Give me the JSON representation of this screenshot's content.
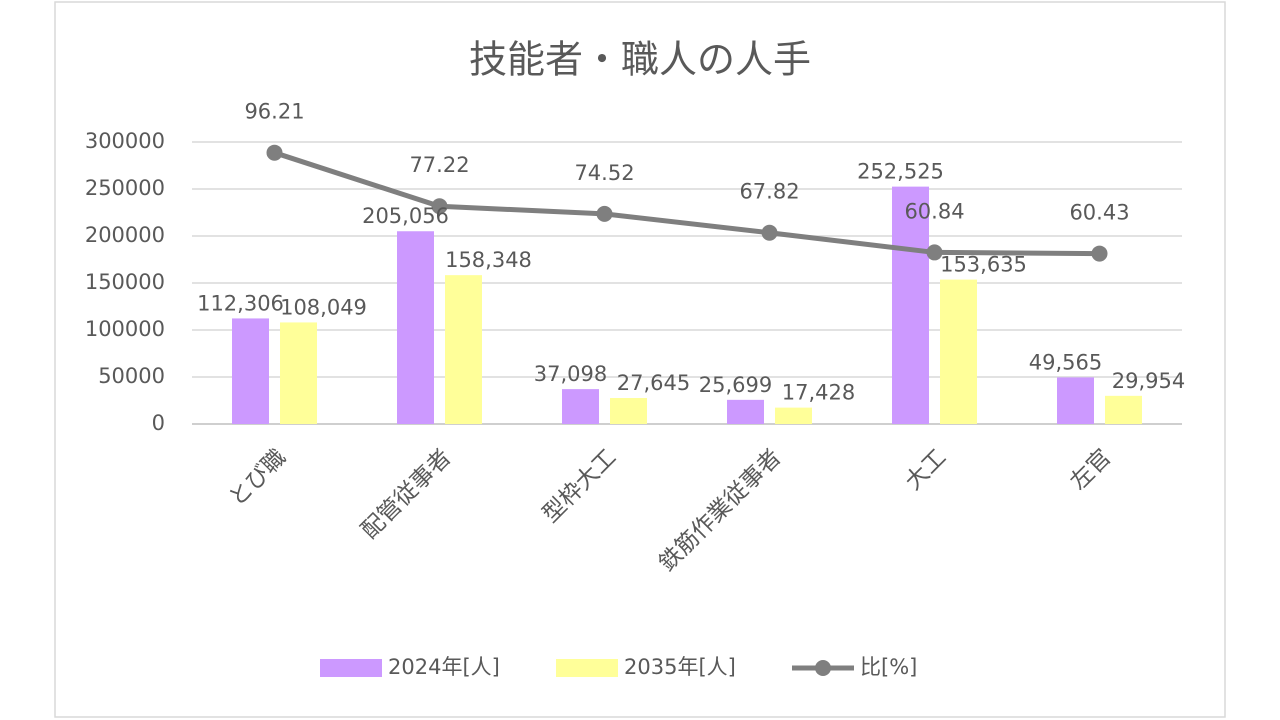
{
  "chart_data": {
    "type": "bar",
    "title": "技能者・職人の人手",
    "categories": [
      "とび職",
      "配管従事者",
      "型枠大工",
      "鉄筋作業従事者",
      "大工",
      "左官"
    ],
    "series": [
      {
        "name": "2024年[人]",
        "type": "bar",
        "color": "#cc99ff",
        "values": [
          112306,
          205056,
          37098,
          25699,
          252525,
          49565
        ],
        "value_labels": [
          "112,306",
          "205,056",
          "37,098",
          "25,699",
          "252,525",
          "49,565"
        ]
      },
      {
        "name": "2035年[人]",
        "type": "bar",
        "color": "#ffff99",
        "values": [
          108049,
          158348,
          27645,
          17428,
          153635,
          29954
        ],
        "value_labels": [
          "108,049",
          "158,348",
          "27,645",
          "17,428",
          "153,635",
          "29,954"
        ]
      },
      {
        "name": "比[%]",
        "type": "line",
        "axis": "y2",
        "color": "#7f7f7f",
        "values": [
          96.21,
          77.22,
          74.52,
          67.82,
          60.84,
          60.43
        ]
      }
    ],
    "ylim": [
      0,
      300000
    ],
    "yticks": [
      0,
      50000,
      100000,
      150000,
      200000,
      250000,
      300000
    ],
    "y2lim": [
      0,
      100
    ],
    "grid": true,
    "legend": "bottom"
  }
}
